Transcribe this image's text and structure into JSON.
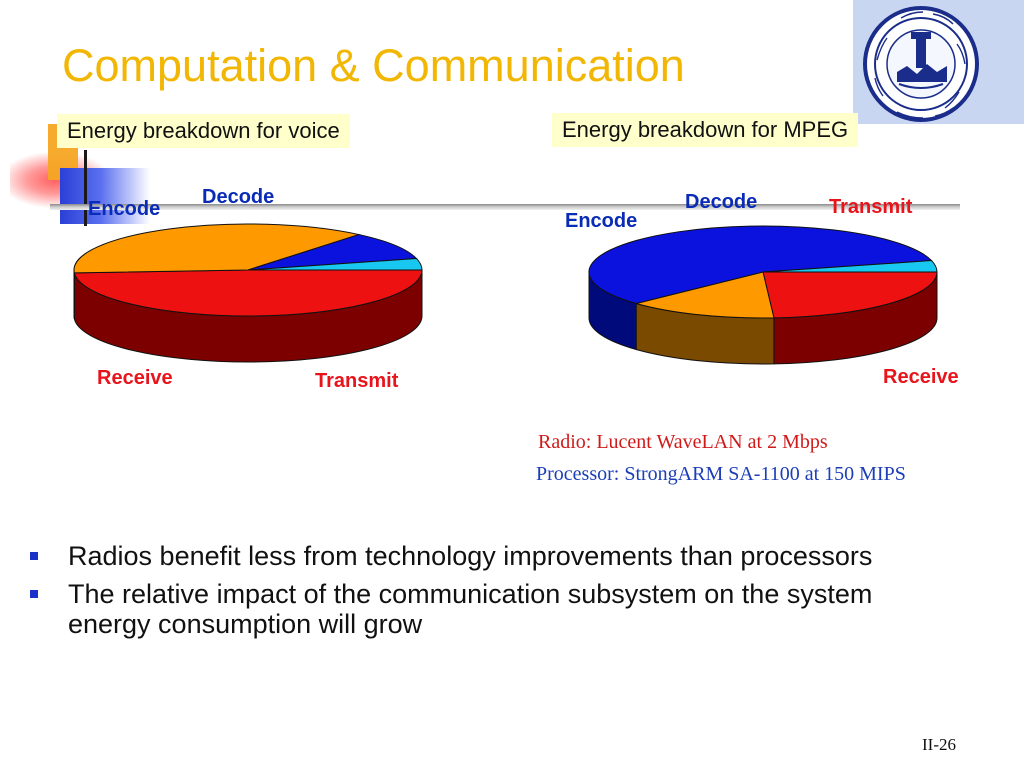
{
  "slide": {
    "title": "Computation & Communication",
    "page_number": "II-26"
  },
  "chart_data": [
    {
      "type": "pie",
      "title": "Energy breakdown for voice",
      "series": [
        {
          "categories": [
            "Transmit",
            "Receive",
            "Encode",
            "Decode"
          ],
          "values": [
            49,
            37,
            10,
            4
          ],
          "colors": [
            "#ee1111",
            "#ff9900",
            "#0b12dd",
            "#18c8f0"
          ],
          "side_colors": [
            "#7d0000",
            "#7a4a00",
            "#000a7a",
            "#0a6f8c"
          ]
        }
      ],
      "label_colors": [
        "#e8141c",
        "#e8141c",
        "#0a2bb5",
        "#0a2bb5"
      ],
      "start_angle_deg": 0,
      "style": "3d"
    },
    {
      "type": "pie",
      "title": "Energy breakdown for MPEG",
      "series": [
        {
          "categories": [
            "Transmit",
            "Receive",
            "Encode",
            "Decode"
          ],
          "values": [
            24,
            14,
            58,
            4
          ],
          "colors": [
            "#ee1111",
            "#ff9900",
            "#0b12dd",
            "#18c8f0"
          ],
          "side_colors": [
            "#7d0000",
            "#7a4a00",
            "#000a7a",
            "#0a6f8c"
          ]
        }
      ],
      "label_colors": [
        "#e8141c",
        "#e8141c",
        "#0a2bb5",
        "#0a2bb5"
      ],
      "start_angle_deg": 0,
      "style": "3d"
    }
  ],
  "notes": {
    "radio": "Radio: Lucent WaveLAN at 2 Mbps",
    "processor": "Processor: StrongARM SA-1100 at 150 MIPS"
  },
  "bullets": [
    "Radios benefit less from technology improvements than processors",
    "The relative impact of the communication subsystem on the system energy consumption will grow"
  ],
  "colors": {
    "title": "#f2b705",
    "caption_bg": "#ffffcc",
    "bullet_marker": "#1a32c8"
  }
}
